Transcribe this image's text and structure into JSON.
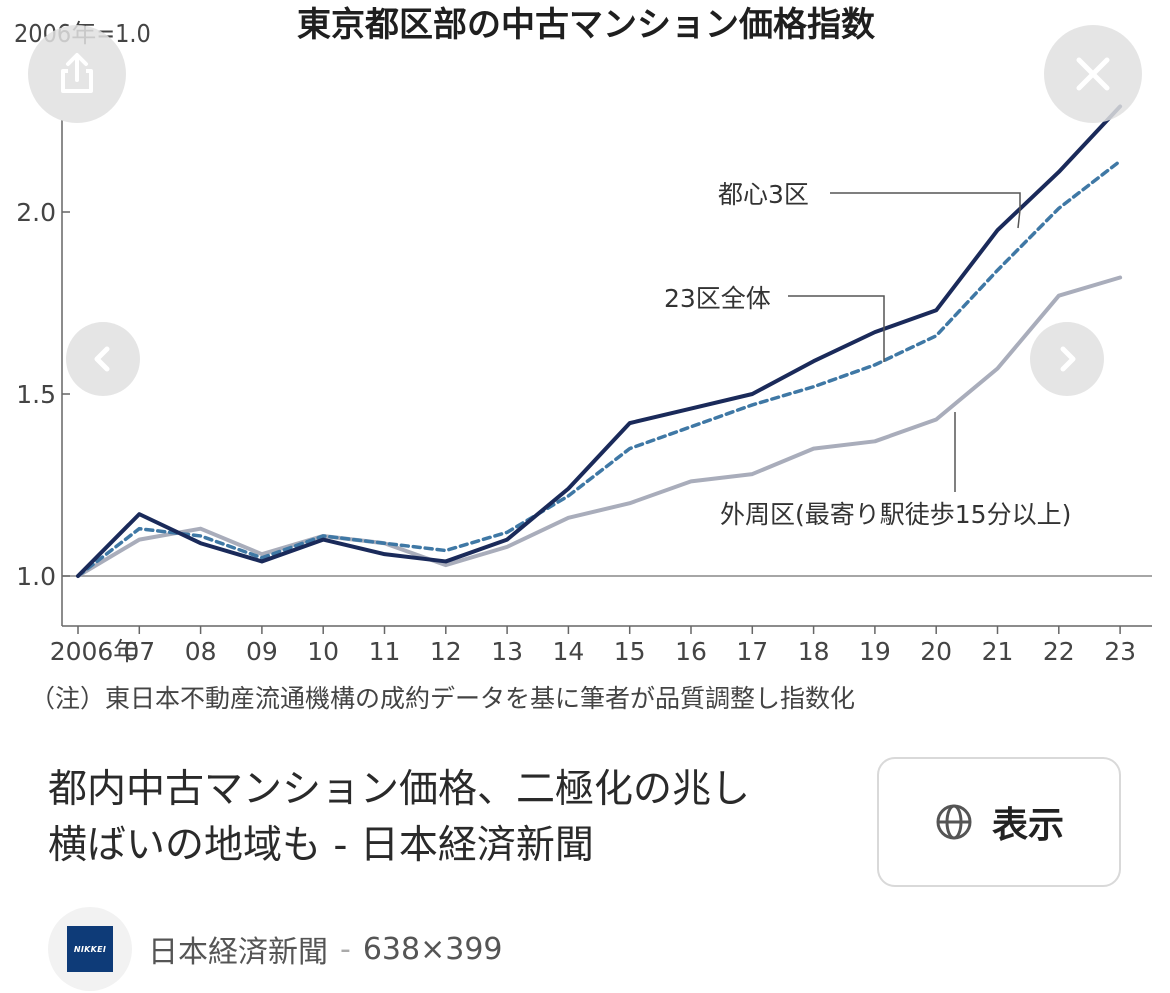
{
  "overlay": {
    "share_icon": "share-icon",
    "close_icon": "close-icon",
    "prev_icon": "chevron-left-icon",
    "next_icon": "chevron-right-icon"
  },
  "chart_data": {
    "type": "line",
    "title": "東京都区部の中古マンション価格指数",
    "unit_label": "2006年=1.0",
    "x": [
      "2006年",
      "07",
      "08",
      "09",
      "10",
      "11",
      "12",
      "13",
      "14",
      "15",
      "16",
      "17",
      "18",
      "19",
      "20",
      "21",
      "22",
      "23"
    ],
    "ylim": [
      0.88,
      2.3
    ],
    "yticks": [
      "1.0",
      "1.5",
      "2.0"
    ],
    "ytick_values": [
      1.0,
      1.5,
      2.0
    ],
    "grid": false,
    "series": [
      {
        "name": "都心3区",
        "color": "#1a2a5a",
        "style": "solid",
        "values": [
          1.0,
          1.17,
          1.09,
          1.04,
          1.1,
          1.06,
          1.04,
          1.1,
          1.24,
          1.42,
          1.46,
          1.5,
          1.59,
          1.67,
          1.73,
          1.95,
          2.11,
          2.29
        ]
      },
      {
        "name": "23区全体",
        "color": "#3f78a5",
        "style": "dashed",
        "values": [
          1.0,
          1.13,
          1.11,
          1.05,
          1.11,
          1.09,
          1.07,
          1.12,
          1.22,
          1.35,
          1.41,
          1.47,
          1.52,
          1.58,
          1.66,
          1.84,
          2.01,
          2.14
        ]
      },
      {
        "name": "外周区(最寄り駅徒歩15分以上)",
        "color": "#a9adbb",
        "style": "solid",
        "values": [
          1.0,
          1.1,
          1.13,
          1.06,
          1.11,
          1.09,
          1.03,
          1.08,
          1.16,
          1.2,
          1.26,
          1.28,
          1.35,
          1.37,
          1.43,
          1.57,
          1.77,
          1.82
        ]
      }
    ],
    "note": "（注）東日本不動産流通機構の成約データを基に筆者が品質調整し指数化"
  },
  "caption": {
    "line1": "都内中古マンション価格、二極化の兆し",
    "line2": "横ばいの地域も - 日本経済新聞"
  },
  "view_button": {
    "icon": "globe-icon",
    "label": "表示"
  },
  "source": {
    "logo_text": "NIKKEI",
    "name": "日本経済新聞",
    "separator": "-",
    "dimensions": "638×399"
  }
}
